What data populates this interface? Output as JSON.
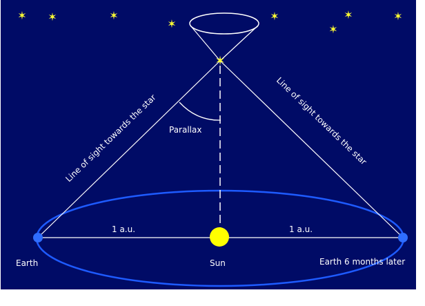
{
  "labels": {
    "earth_left": "Earth",
    "earth_right": "Earth 6 months  later",
    "sun": "Sun",
    "au_left": "1 a.u.",
    "au_right": "1 a.u.",
    "parallax": "Parallax",
    "sight_left": "Line of sight towards the star",
    "sight_right": "Line of sight towards the star"
  },
  "colors": {
    "background": "#000b66",
    "lines": "#ffffff",
    "orbit": "#1e5bff",
    "earth": "#2f6dff",
    "sun": "#ffff00",
    "stars": "#ffff33"
  },
  "icons": {
    "background_star": "star-icon",
    "target_star": "target-star-icon",
    "sun": "sun-icon",
    "earth": "earth-icon"
  }
}
